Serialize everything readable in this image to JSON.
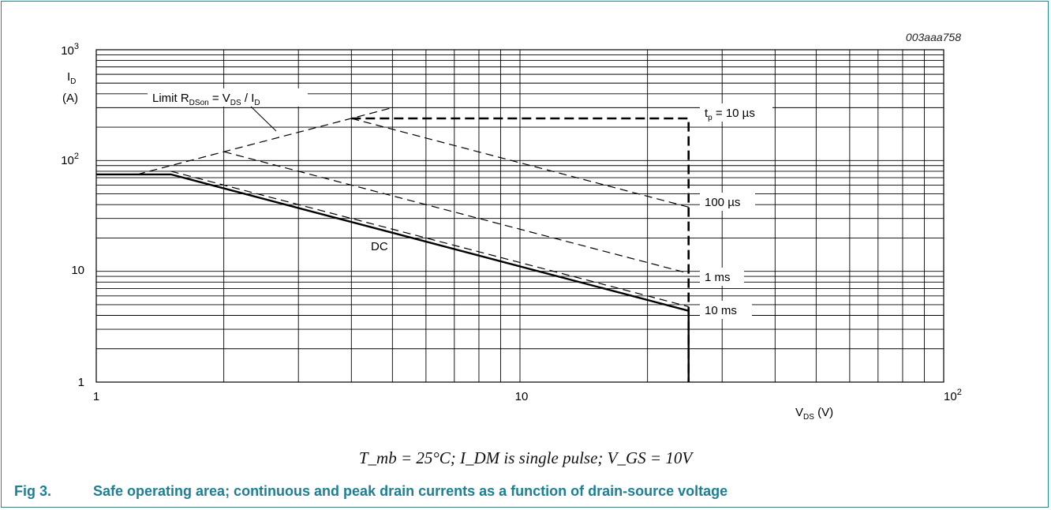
{
  "figure_code": "003aaa758",
  "caption": {
    "number": "Fig 3.",
    "text": "Safe operating area; continuous and peak drain currents as a function of drain-source voltage"
  },
  "conditions": "T_mb = 25°C; I_DM is single pulse; V_GS = 10V",
  "chart_data": {
    "type": "line",
    "xscale": "log",
    "yscale": "log",
    "xlim": [
      1,
      100
    ],
    "ylim": [
      1,
      1000
    ],
    "grid": true,
    "xlabel": "V_DS (V)",
    "ylabel": "I_D (A)",
    "x_tick_labels": [
      "1",
      "10",
      "10^2"
    ],
    "y_tick_labels": [
      "1",
      "10",
      "10^2",
      "10^3"
    ],
    "series": [
      {
        "name": "Limit R_DSon = V_DS / I_D",
        "style": "dashed",
        "x": [
          1.25,
          5.0
        ],
        "y": [
          75,
          300
        ]
      },
      {
        "name": "t_p = 10 µs",
        "style": "bold-dashed",
        "x": [
          4.0,
          25,
          25
        ],
        "y": [
          240,
          240,
          1
        ]
      },
      {
        "name": "100 µs",
        "style": "dashed",
        "x": [
          4.0,
          25
        ],
        "y": [
          240,
          38
        ]
      },
      {
        "name": "1 ms",
        "style": "dashed",
        "x": [
          2.0,
          25
        ],
        "y": [
          120,
          9.6
        ]
      },
      {
        "name": "10 ms",
        "style": "dashed",
        "x": [
          1.5,
          25
        ],
        "y": [
          80,
          4.8
        ]
      },
      {
        "name": "DC",
        "style": "solid",
        "x": [
          1,
          1.5,
          25,
          25
        ],
        "y": [
          75,
          75,
          4.4,
          1
        ]
      }
    ]
  },
  "labels": {
    "limit_prefix": "Limit R",
    "limit_sub1": "DSon",
    "limit_mid": " = V",
    "limit_sub2": "DS",
    "limit_mid2": " / I",
    "limit_sub3": "D",
    "tp_prefix": "t",
    "tp_sub": "p",
    "tp_rest": " = 10 µs",
    "us100": "100 µs",
    "ms1": "1 ms",
    "ms10": "10 ms",
    "dc": "DC",
    "y_label_main": "I",
    "y_label_sub": "D",
    "y_label_unit": "(A)",
    "x_label_main": "V",
    "x_label_sub": "DS",
    "x_label_unit": " (V)"
  }
}
